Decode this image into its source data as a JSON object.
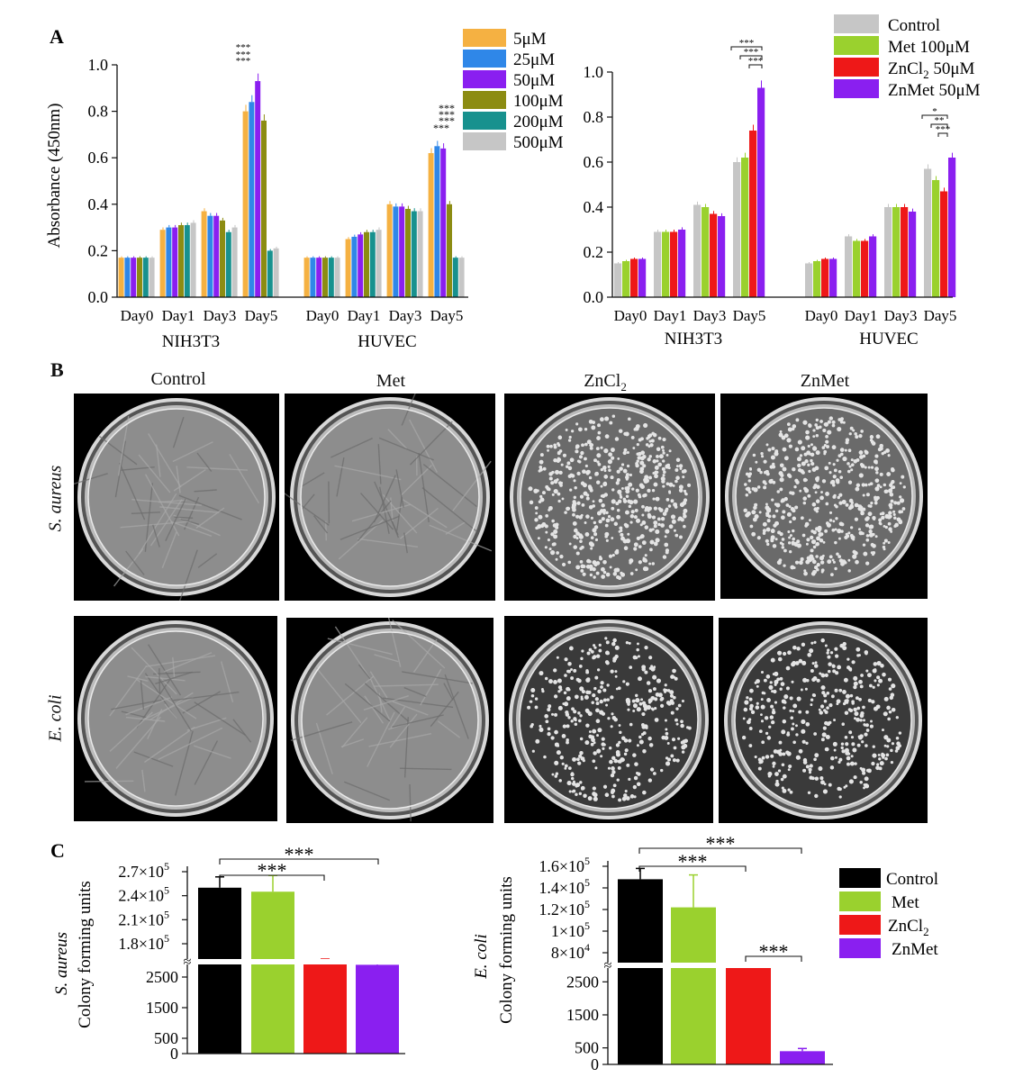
{
  "panel_labels": {
    "a": "A",
    "b": "B",
    "c": "C"
  },
  "colors": {
    "conc": [
      "#f5b142",
      "#2f87e8",
      "#8a1ff0",
      "#8c8c12",
      "#17918e",
      "#c6c6c6"
    ],
    "treat": [
      "#c6c6c6",
      "#9ad12e",
      "#ee1818",
      "#8a1ff0"
    ],
    "cfu": [
      "#000000",
      "#9ad12e",
      "#ee1818",
      "#8a1ff0"
    ]
  },
  "panel_b": {
    "columns": [
      "Control",
      "Met",
      "ZnCl",
      "ZnMet"
    ],
    "zncl_subscript": "2",
    "rows": [
      "S. aureus",
      "E. coli"
    ]
  },
  "chart_data": [
    {
      "type": "bar",
      "title": "",
      "ylabel": "Absorbance (450nm)",
      "ylim": [
        0,
        1.0
      ],
      "yticks": [
        "0.0",
        "0.2",
        "0.4",
        "0.6",
        "0.8",
        "1.0"
      ],
      "groups": [
        "NIH3T3",
        "HUVEC"
      ],
      "categories": [
        "Day0",
        "Day1",
        "Day3",
        "Day5"
      ],
      "legend": [
        "5μM",
        "25μM",
        "50μM",
        "100μM",
        "200μM",
        "500μM"
      ],
      "series": [
        {
          "name": "5μM",
          "NIH3T3": [
            0.17,
            0.29,
            0.37,
            0.8
          ],
          "HUVEC": [
            0.17,
            0.25,
            0.4,
            0.62
          ]
        },
        {
          "name": "25μM",
          "NIH3T3": [
            0.17,
            0.3,
            0.35,
            0.84
          ],
          "HUVEC": [
            0.17,
            0.26,
            0.39,
            0.65
          ]
        },
        {
          "name": "50μM",
          "NIH3T3": [
            0.17,
            0.3,
            0.35,
            0.93
          ],
          "HUVEC": [
            0.17,
            0.27,
            0.39,
            0.64
          ]
        },
        {
          "name": "100μM",
          "NIH3T3": [
            0.17,
            0.31,
            0.33,
            0.76
          ],
          "HUVEC": [
            0.17,
            0.28,
            0.38,
            0.4
          ]
        },
        {
          "name": "200μM",
          "NIH3T3": [
            0.17,
            0.31,
            0.28,
            0.2
          ],
          "HUVEC": [
            0.17,
            0.28,
            0.37,
            0.17
          ]
        },
        {
          "name": "500μM",
          "NIH3T3": [
            0.17,
            0.32,
            0.3,
            0.21
          ],
          "HUVEC": [
            0.17,
            0.29,
            0.37,
            0.17
          ]
        }
      ],
      "significance": "***"
    },
    {
      "type": "bar",
      "title": "",
      "ylabel": "",
      "ylim": [
        0,
        1.0
      ],
      "yticks": [
        "0.0",
        "0.2",
        "0.4",
        "0.6",
        "0.8",
        "1.0"
      ],
      "groups": [
        "NIH3T3",
        "HUVEC"
      ],
      "categories": [
        "Day0",
        "Day1",
        "Day3",
        "Day5"
      ],
      "legend": [
        "Control",
        "Met 100μM",
        "ZnCl",
        "ZnMet 50μM"
      ],
      "zncl_legend": {
        "base": "ZnCl",
        "sub": "2",
        "rest": " 50μM"
      },
      "series": [
        {
          "name": "Control",
          "NIH3T3": [
            0.15,
            0.29,
            0.41,
            0.6
          ],
          "HUVEC": [
            0.15,
            0.27,
            0.4,
            0.57
          ]
        },
        {
          "name": "Met 100μM",
          "NIH3T3": [
            0.16,
            0.29,
            0.4,
            0.62
          ],
          "HUVEC": [
            0.16,
            0.25,
            0.4,
            0.52
          ]
        },
        {
          "name": "ZnCl2 50μM",
          "NIH3T3": [
            0.17,
            0.29,
            0.37,
            0.74
          ],
          "HUVEC": [
            0.17,
            0.25,
            0.4,
            0.47
          ]
        },
        {
          "name": "ZnMet 50μM",
          "NIH3T3": [
            0.17,
            0.3,
            0.36,
            0.93
          ],
          "HUVEC": [
            0.17,
            0.27,
            0.38,
            0.62
          ]
        }
      ],
      "significance": [
        "***",
        "**",
        "*"
      ]
    },
    {
      "type": "bar",
      "ylabel": "Colony forming units",
      "row_label": "S. aureus",
      "axis_break": true,
      "lower_ylim": [
        0,
        3000
      ],
      "lower_ticks": [
        "0",
        "500",
        "1500",
        "2500"
      ],
      "upper_ticks": [
        "1.8×10",
        "2.1×10",
        "2.4×10",
        "2.7×10"
      ],
      "upper_tick_values": [
        180000,
        210000,
        240000,
        270000
      ],
      "upper_exponent": "5",
      "categories": [
        "Control",
        "Met",
        "ZnCl2",
        "ZnMet"
      ],
      "values": [
        250000,
        245000,
        3000,
        2900
      ],
      "significance": "***"
    },
    {
      "type": "bar",
      "ylabel": "Colony forming units",
      "row_label": "E. coli",
      "axis_break": true,
      "lower_ylim": [
        0,
        3000
      ],
      "lower_ticks": [
        "0",
        "500",
        "1500",
        "2500"
      ],
      "upper_ticks": [
        "8×10",
        "1×10",
        "1.2×10",
        "1.4×10",
        "1.6×10"
      ],
      "upper_tick_values": [
        80000,
        100000,
        120000,
        140000,
        160000
      ],
      "upper_exponents": [
        "4",
        "5",
        "5",
        "5",
        "5"
      ],
      "categories": [
        "Control",
        "Met",
        "ZnCl2",
        "ZnMet"
      ],
      "values": [
        148000,
        122000,
        2950,
        400
      ],
      "legend": [
        "Control",
        "Met",
        "ZnCl",
        "ZnMet"
      ],
      "zncl_legend": {
        "base": "ZnCl",
        "sub": "2"
      },
      "significance": "***"
    }
  ]
}
